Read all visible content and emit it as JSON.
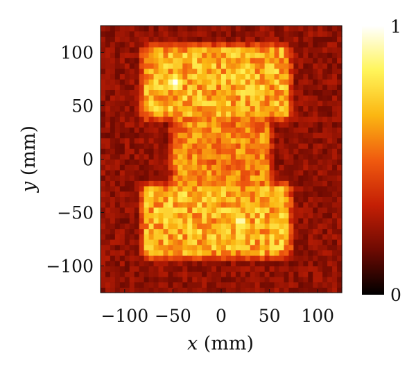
{
  "chart_data": {
    "type": "heatmap",
    "title": "",
    "xlabel_var": "x",
    "xlabel_unit": " (mm)",
    "ylabel_var": "y",
    "ylabel_unit": " (mm)",
    "xlim": [
      -125,
      125
    ],
    "ylim": [
      -125,
      125
    ],
    "x_ticks": [
      -100,
      -50,
      0,
      50,
      100
    ],
    "y_ticks": [
      -100,
      -50,
      0,
      50,
      100
    ],
    "x_tick_labels": [
      "−100",
      "−50",
      "0",
      "50",
      "100"
    ],
    "y_tick_labels": [
      "−100",
      "−50",
      "0",
      "50",
      "100"
    ],
    "grid": false,
    "colormap": "hot",
    "colorbar": {
      "min": 0,
      "max": 1,
      "min_label": "0",
      "max_label": "1",
      "stops": [
        "#000000",
        "#6e0a02",
        "#c41f05",
        "#f05a0f",
        "#fbb612",
        "#fff55a",
        "#ffffff"
      ]
    },
    "shape_description_regions": [
      {
        "x_range": [
          -75,
          65
        ],
        "y_range": [
          45,
          100
        ],
        "intensity": 0.7
      },
      {
        "x_range": [
          -75,
          65
        ],
        "y_range": [
          -85,
          -30
        ],
        "intensity": 0.7
      },
      {
        "x_range": [
          -45,
          45
        ],
        "y_range": [
          -30,
          45
        ],
        "intensity": 0.6
      }
    ],
    "hot_spots": [
      {
        "x": -48,
        "y": 72,
        "value": 1.0
      },
      {
        "x": 30,
        "y": 65,
        "value": 0.85
      },
      {
        "x": 20,
        "y": -58,
        "value": 0.95
      },
      {
        "x": 55,
        "y": -62,
        "value": 0.8
      },
      {
        "x": -55,
        "y": -50,
        "value": 0.8
      },
      {
        "x": 5,
        "y": 20,
        "value": 0.65
      }
    ]
  }
}
